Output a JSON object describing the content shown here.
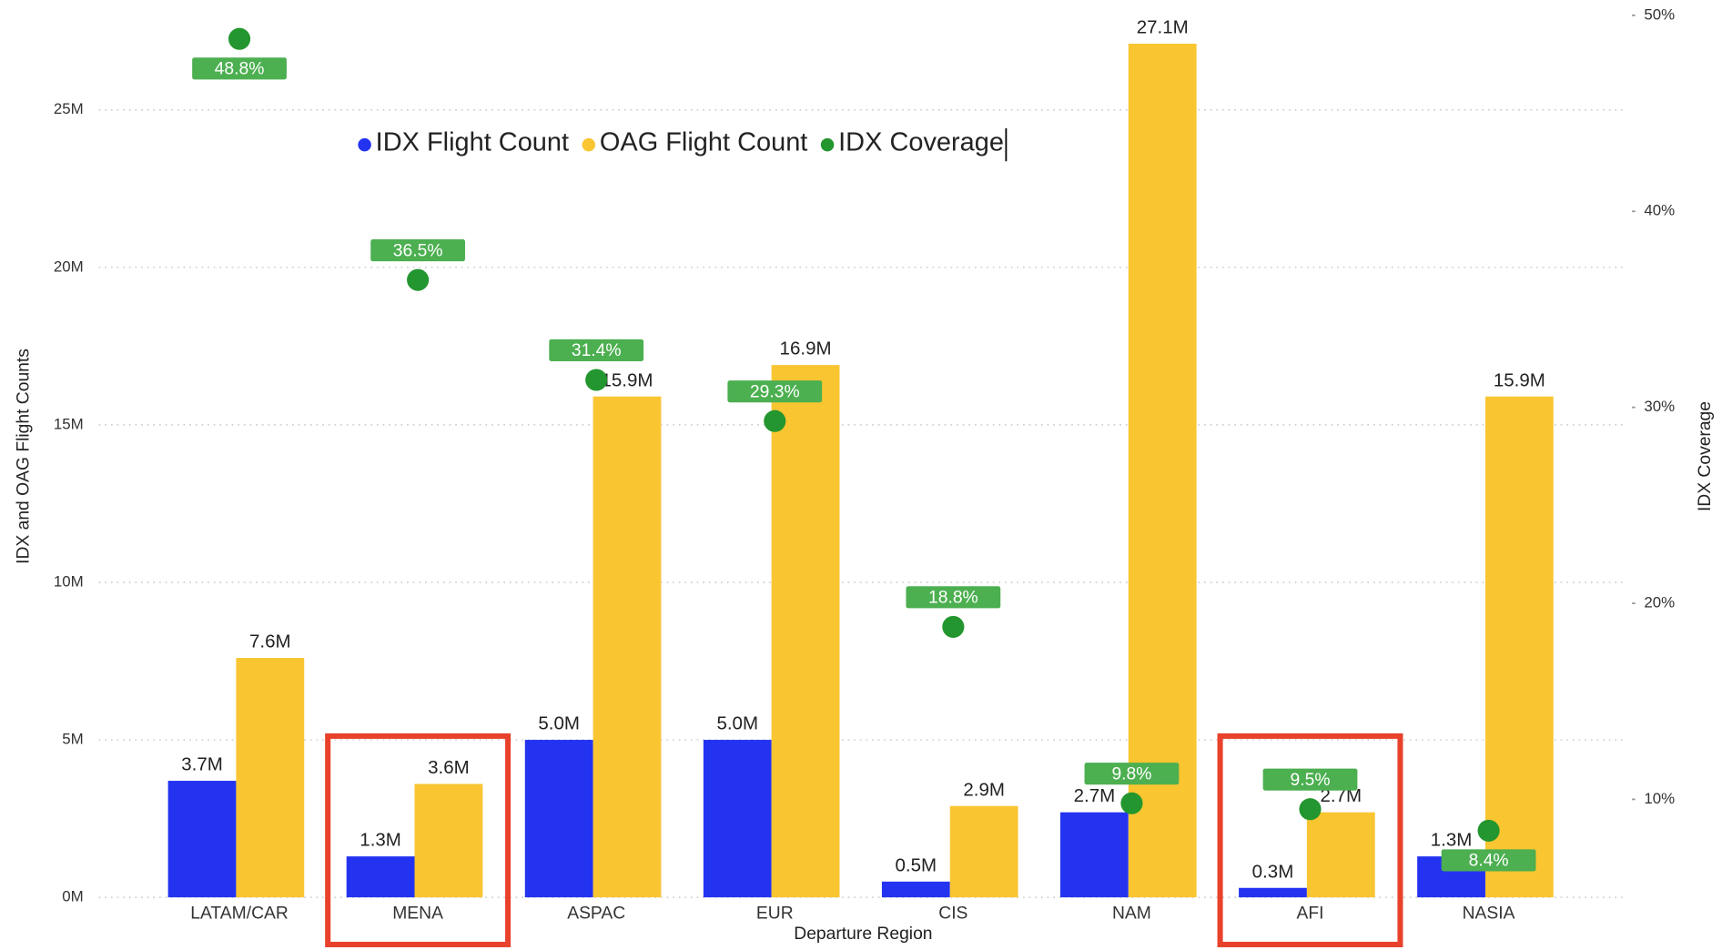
{
  "chart_data": {
    "type": "bar",
    "categories": [
      "LATAM/CAR",
      "MENA",
      "ASPAC",
      "EUR",
      "CIS",
      "NAM",
      "AFI",
      "NASIA"
    ],
    "series": [
      {
        "name": "IDX Flight Count",
        "color": "#2433f0",
        "values": [
          3700000,
          1300000,
          5000000,
          5000000,
          500000,
          2700000,
          300000,
          1300000
        ],
        "value_labels": [
          "3.7M",
          "1.3M",
          "5.0M",
          "5.0M",
          "0.5M",
          "2.7M",
          "0.3M",
          "1.3M"
        ]
      },
      {
        "name": "OAG Flight Count",
        "color": "#f9c531",
        "values": [
          7600000,
          3600000,
          15900000,
          16900000,
          2900000,
          27100000,
          2700000,
          15900000
        ],
        "value_labels": [
          "7.6M",
          "3.6M",
          "15.9M",
          "16.9M",
          "2.9M",
          "27.1M",
          "2.7M",
          "15.9M"
        ]
      },
      {
        "name": "IDX Coverage",
        "color": "#23962f",
        "axis": "y2",
        "type": "scatter",
        "values": [
          48.8,
          36.5,
          31.4,
          29.3,
          18.8,
          9.8,
          9.5,
          8.4
        ],
        "value_labels": [
          "48.8%",
          "36.5%",
          "31.4%",
          "29.3%",
          "18.8%",
          "9.8%",
          "9.5%",
          "8.4%"
        ]
      }
    ],
    "xlabel": "Departure Region",
    "ylabel": "IDX and OAG Flight Counts",
    "y2label": "IDX Coverage",
    "ylim": [
      0,
      28000000
    ],
    "yticks": [
      {
        "value": 0,
        "label": "0M"
      },
      {
        "value": 5000000,
        "label": "5M"
      },
      {
        "value": 10000000,
        "label": "10M"
      },
      {
        "value": 15000000,
        "label": "15M"
      },
      {
        "value": 20000000,
        "label": "20M"
      },
      {
        "value": 25000000,
        "label": "25M"
      }
    ],
    "y2lim": [
      5,
      50
    ],
    "y2ticks": [
      {
        "value": 10,
        "label": "10%"
      },
      {
        "value": 20,
        "label": "20%"
      },
      {
        "value": 30,
        "label": "30%"
      },
      {
        "value": 40,
        "label": "40%"
      },
      {
        "value": 50,
        "label": "50%"
      }
    ],
    "grid": true
  }
}
